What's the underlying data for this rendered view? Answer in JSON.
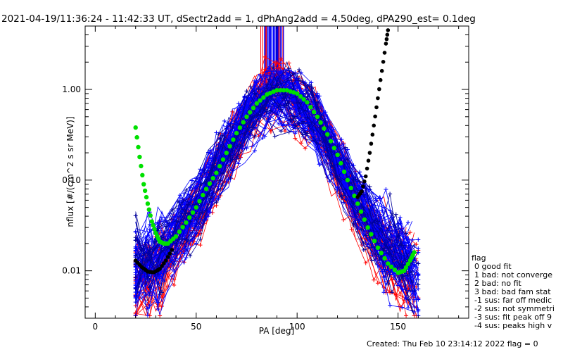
{
  "chart_data": {
    "type": "line",
    "title": "2021-04-19/11:36:24 - 11:42:33 UT, dSectr2add = 1, dPhAng2add = 4.50deg, dPA290_est=    0.1deg",
    "xlabel": "PA [deg]",
    "ylabel": "nflux [#/(cm^2 s sr MeV)]",
    "xlim": [
      -5,
      185
    ],
    "ylim": [
      0.003,
      5.0
    ],
    "yscale": "log",
    "xticks": [
      0,
      50,
      100,
      150
    ],
    "xtick_labels": [
      "0",
      "50",
      "100",
      "150"
    ],
    "yticks": [
      0.01,
      0.1,
      1.0
    ],
    "ytick_labels": [
      "0.01",
      "0.10",
      "1.00"
    ],
    "series": [
      {
        "name": "green fit",
        "color": "#00e000",
        "x": [
          20,
          22,
          24,
          26,
          28,
          30,
          32,
          34,
          36,
          40,
          45,
          50,
          55,
          60,
          65,
          70,
          75,
          80,
          85,
          90,
          95,
          100,
          105,
          110,
          115,
          120,
          125,
          130,
          135,
          140,
          145,
          150,
          153,
          156,
          158
        ],
        "y": [
          0.38,
          0.18,
          0.09,
          0.055,
          0.035,
          0.026,
          0.021,
          0.02,
          0.02,
          0.024,
          0.034,
          0.05,
          0.08,
          0.12,
          0.2,
          0.33,
          0.5,
          0.7,
          0.88,
          0.98,
          0.98,
          0.9,
          0.72,
          0.5,
          0.32,
          0.19,
          0.1,
          0.055,
          0.03,
          0.018,
          0.012,
          0.0095,
          0.01,
          0.013,
          0.016
        ]
      },
      {
        "name": "black fit",
        "color": "#000000",
        "x": [
          20,
          23,
          26,
          29,
          32,
          35,
          38
        ],
        "y": [
          0.013,
          0.011,
          0.0098,
          0.0096,
          0.0105,
          0.013,
          0.017
        ]
      },
      {
        "name": "black fit right",
        "color": "#000000",
        "x": [
          130,
          132,
          134,
          136,
          138,
          140,
          142,
          144,
          145
        ],
        "y": [
          0.065,
          0.075,
          0.11,
          0.2,
          0.4,
          0.8,
          1.6,
          3.2,
          4.5
        ]
      },
      {
        "name": "data red",
        "color": "#ff0000",
        "x": [
          20,
          30,
          40,
          50,
          60,
          70,
          80,
          85,
          90,
          95,
          100,
          110,
          120,
          130,
          140,
          150,
          158
        ],
        "y": [
          0.008,
          0.009,
          0.02,
          0.045,
          0.12,
          0.3,
          0.7,
          1.0,
          1.0,
          1.0,
          0.85,
          0.45,
          0.15,
          0.05,
          0.02,
          0.012,
          0.008
        ]
      },
      {
        "name": "data blue",
        "color": "#0000ff",
        "x": [
          20,
          30,
          40,
          50,
          60,
          70,
          80,
          85,
          90,
          95,
          100,
          110,
          120,
          130,
          140,
          150,
          158
        ],
        "y": [
          0.012,
          0.014,
          0.025,
          0.05,
          0.14,
          0.32,
          0.65,
          0.8,
          0.85,
          0.85,
          0.78,
          0.42,
          0.16,
          0.06,
          0.025,
          0.015,
          0.01
        ]
      }
    ],
    "legend": {
      "position": "right",
      "title": "flag",
      "entries": [
        " 0 good fit",
        " 1 bad: not converge",
        " 2 bad: no fit",
        " 3 bad: bad fam stat",
        "-1 sus: far off medic",
        "-2 sus: not symmetri",
        "-3 sus: fit peak off 9",
        "-4 sus: peaks high v"
      ]
    },
    "footer": "Created: Thu Feb 10 23:14:12 2022    flag = 0"
  }
}
